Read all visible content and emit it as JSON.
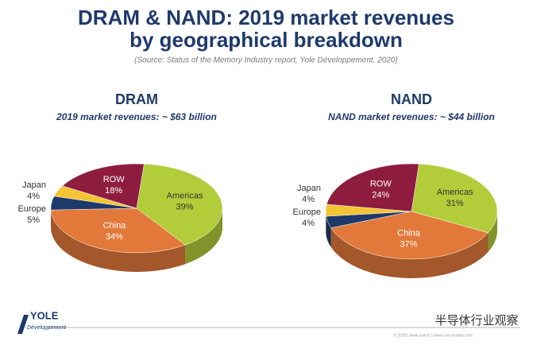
{
  "title": "DRAM & NAND: 2019 market revenues",
  "title_line2": "by geographical breakdown",
  "subtitle": "(Source: Status of the Memory Industry report, Yole Développement, 2020)",
  "chart_data": [
    {
      "type": "pie",
      "title": "DRAM",
      "subtitle": "2019 market revenues: ~ $63 billion",
      "categories": [
        "Americas",
        "China",
        "Europe",
        "Japan",
        "ROW"
      ],
      "values": [
        39,
        34,
        5,
        4,
        18
      ],
      "value_labels": [
        "39%",
        "34%",
        "5%",
        "4%",
        "18%"
      ],
      "colors": [
        "#b3cc3a",
        "#e2793a",
        "#1e3a6b",
        "#f3c433",
        "#8e1c3f"
      ]
    },
    {
      "type": "pie",
      "title": "NAND",
      "subtitle": "NAND market revenues: ~ $44 billion",
      "categories": [
        "Americas",
        "China",
        "Europe",
        "Japan",
        "ROW"
      ],
      "values": [
        31,
        37,
        4,
        4,
        24
      ],
      "value_labels": [
        "31%",
        "37%",
        "4%",
        "4%",
        "24%"
      ],
      "colors": [
        "#b3cc3a",
        "#e2793a",
        "#1e3a6b",
        "#f3c433",
        "#8e1c3f"
      ]
    }
  ],
  "footer": {
    "logo": "YOLE",
    "logo_sub": "Développement",
    "copyright": "© 2020 | www.yole.fr | www.i-micronews.com",
    "watermark": "半导体行业观察"
  }
}
